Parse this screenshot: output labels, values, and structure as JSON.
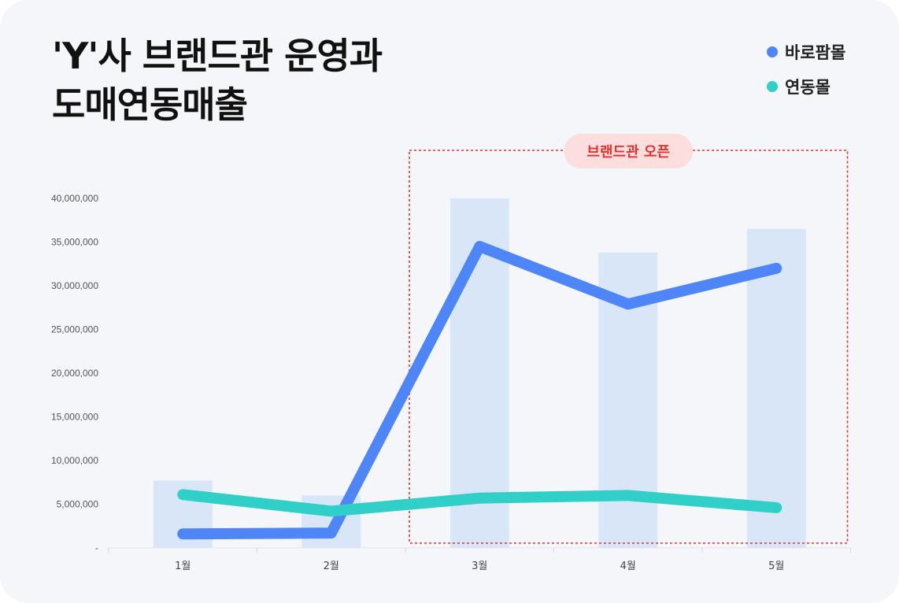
{
  "title": {
    "line1": "'Y'사 브랜드관 운영과",
    "line2": "도매연동매출"
  },
  "legend": [
    {
      "label": "바로팜몰",
      "color": "#4f86f7"
    },
    {
      "label": "연동몰",
      "color": "#30d0c8"
    }
  ],
  "annotation": {
    "label": "브랜드관 오픈",
    "start_category": "3월",
    "end_category": "5월",
    "color": "#e5312f",
    "badge_color": "#fcdede"
  },
  "chart_data": {
    "type": "bar",
    "categories": [
      "1월",
      "2월",
      "3월",
      "4월",
      "5월"
    ],
    "ylim": [
      0,
      40000000
    ],
    "yticks": [
      "-",
      "5,000,000",
      "10,000,000",
      "15,000,000",
      "20,000,000",
      "25,000,000",
      "30,000,000",
      "35,000,000",
      "40,000,000"
    ],
    "bars": {
      "values": [
        7700000,
        6000000,
        40000000,
        33800000,
        36500000
      ],
      "color": "#d8e6f8"
    },
    "series": [
      {
        "name": "바로팜몰",
        "type": "line",
        "color": "#4f86f7",
        "values": [
          1600000,
          1700000,
          34500000,
          27900000,
          32000000
        ]
      },
      {
        "name": "연동몰",
        "type": "line",
        "color": "#30d0c8",
        "values": [
          6100000,
          4200000,
          5700000,
          6000000,
          4600000
        ]
      }
    ]
  }
}
